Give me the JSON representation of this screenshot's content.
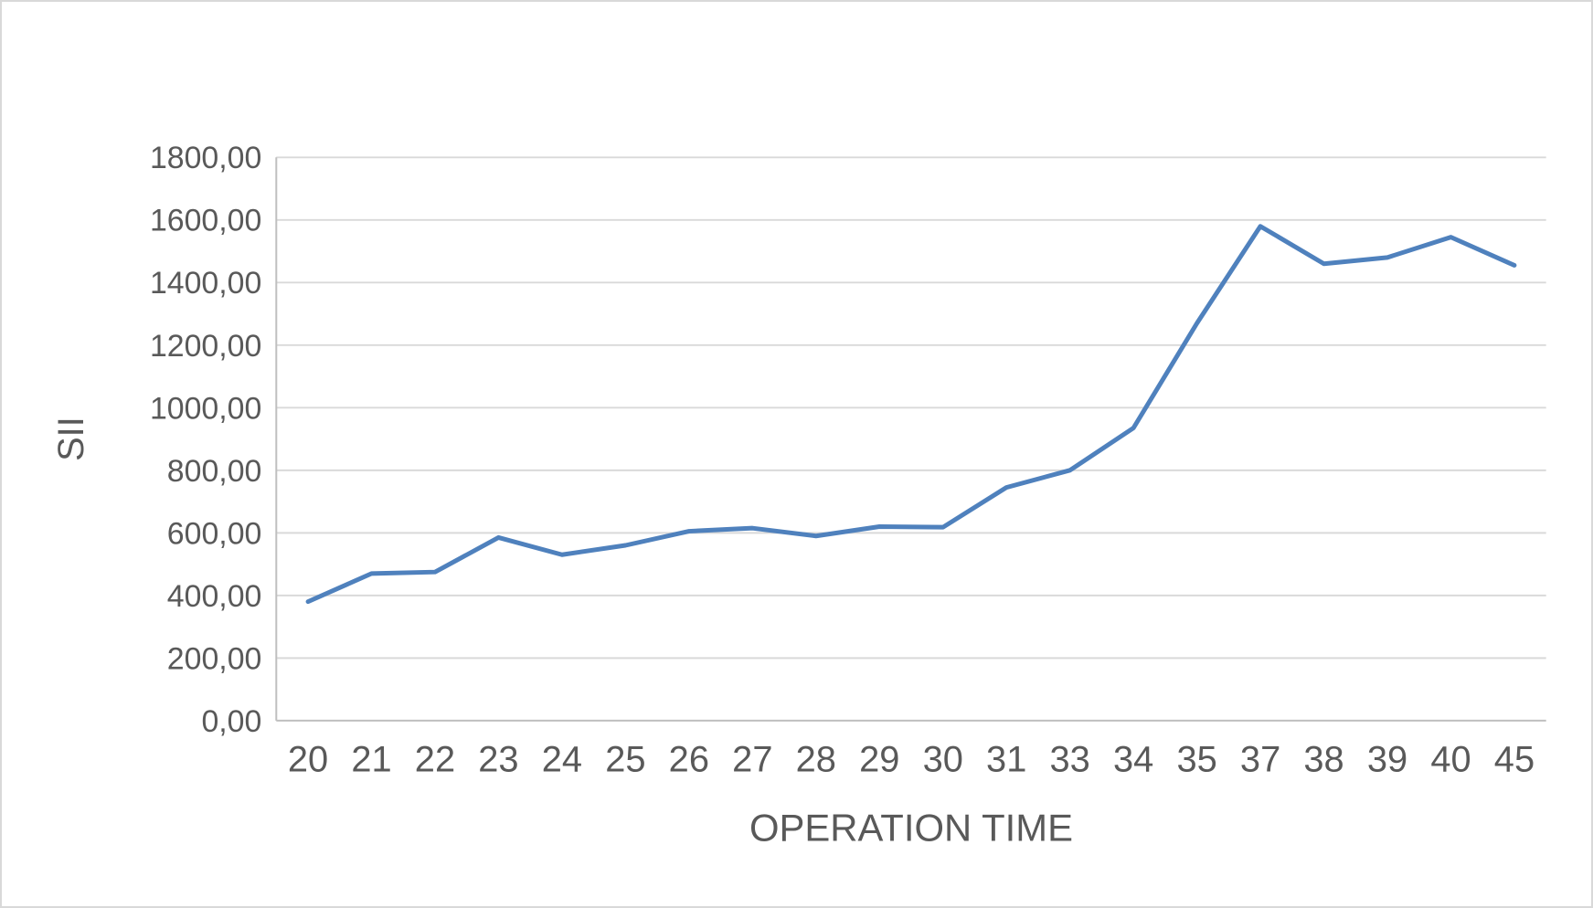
{
  "chart_data": {
    "type": "line",
    "title": "",
    "xlabel": "OPERATION TIME",
    "ylabel": "SII",
    "categories": [
      "20",
      "21",
      "22",
      "23",
      "24",
      "25",
      "26",
      "27",
      "28",
      "29",
      "30",
      "31",
      "33",
      "34",
      "35",
      "37",
      "38",
      "39",
      "40",
      "45"
    ],
    "series": [
      {
        "name": "SII",
        "values": [
          380,
          470,
          475,
          585,
          530,
          560,
          605,
          615,
          590,
          620,
          618,
          745,
          800,
          935,
          1270,
          1580,
          1460,
          1480,
          1545,
          1455
        ]
      }
    ],
    "ylim": [
      0,
      1800
    ],
    "ytick_step": 200,
    "ytick_labels": [
      "0,00",
      "200,00",
      "400,00",
      "600,00",
      "800,00",
      "1000,00",
      "1200,00",
      "1400,00",
      "1600,00",
      "1800,00"
    ],
    "grid": true,
    "legend": "none",
    "colors": {
      "line": "#4F81BD",
      "gridline": "#D9D9D9",
      "axis": "#BFBFBF",
      "text": "#595959",
      "background": "#FFFFFF",
      "border": "#D9D9D9"
    }
  }
}
